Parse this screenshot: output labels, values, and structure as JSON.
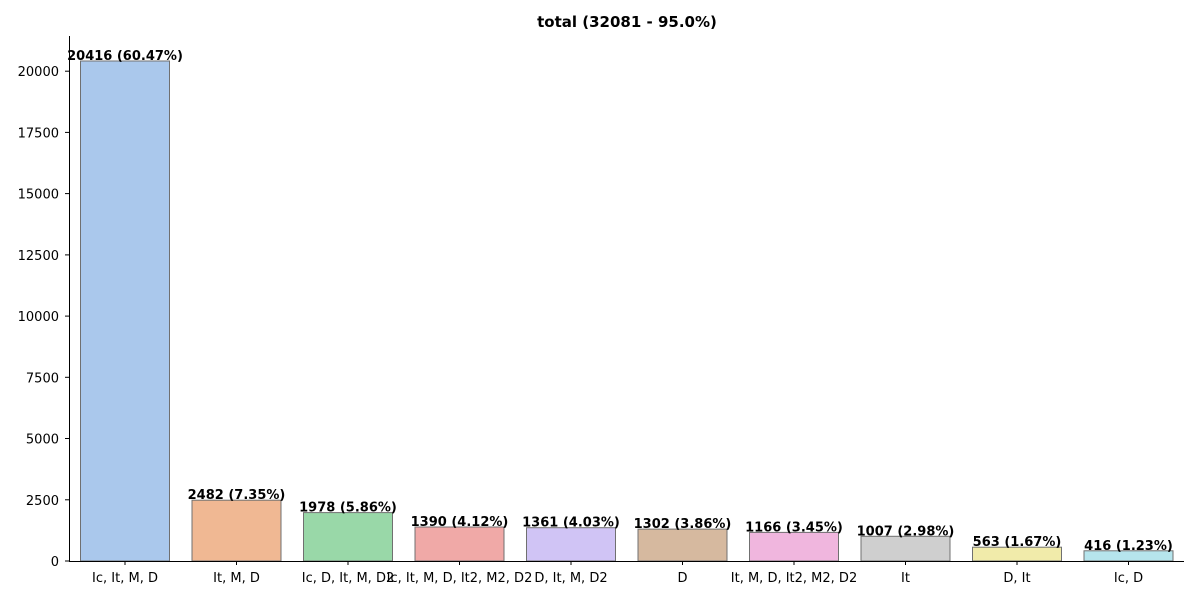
{
  "chart_data": {
    "type": "bar",
    "title": "total (32081 - 95.0%)",
    "xlabel": "",
    "ylabel": "",
    "ylim": [
      0,
      21436.8
    ],
    "yticks": [
      0,
      2500,
      5000,
      7500,
      10000,
      12500,
      15000,
      17500,
      20000
    ],
    "grid": false,
    "categories": [
      "Ic, It, M, D",
      "It, M, D",
      "Ic, D, It, M, D2",
      "Ic, It, M, D, It2, M2, D2",
      "D, It, M, D2",
      "D",
      "It, M, D, It2, M2, D2",
      "It",
      "D, It",
      "Ic, D"
    ],
    "values": [
      20416,
      2482,
      1978,
      1390,
      1361,
      1302,
      1166,
      1007,
      563,
      416
    ],
    "labels": [
      "20416 (60.47%)",
      "2482 (7.35%)",
      "1978 (5.86%)",
      "1390 (4.12%)",
      "1361 (4.03%)",
      "1302 (3.86%)",
      "1166 (3.45%)",
      "1007 (2.98%)",
      "563 (1.67%)",
      "416 (1.23%)"
    ],
    "colors": [
      "#aac8ec",
      "#f0b893",
      "#99d8a8",
      "#f0a9a7",
      "#d0c4f5",
      "#d6b99f",
      "#f0b6de",
      "#cfcfcf",
      "#f1ebaa",
      "#b6e5ed"
    ],
    "bar_edge_color": "#707070"
  }
}
